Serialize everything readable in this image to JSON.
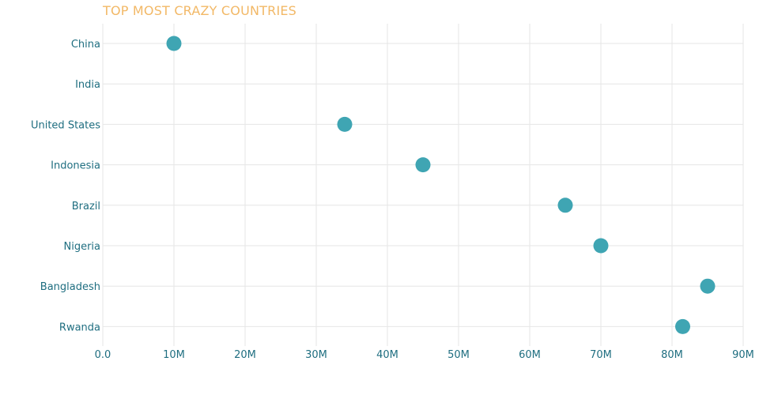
{
  "chart_data": {
    "type": "scatter",
    "title": "TOP MOST CRAZY COUNTRIES",
    "xlabel": "",
    "ylabel": "",
    "categories": [
      "China",
      "India",
      "United States",
      "Indonesia",
      "Brazil",
      "Nigeria",
      "Bangladesh",
      "Rwanda"
    ],
    "values": [
      10000000,
      null,
      34000000,
      45000000,
      65000000,
      70000000,
      85000000,
      81500000
    ],
    "xlim": [
      0,
      90000000
    ],
    "x_ticks": [
      0,
      10000000,
      20000000,
      30000000,
      40000000,
      50000000,
      60000000,
      70000000,
      80000000,
      90000000
    ],
    "x_tick_labels": [
      "0.0",
      "10M",
      "20M",
      "30M",
      "40M",
      "50M",
      "60M",
      "70M",
      "80M",
      "90M"
    ],
    "grid": true,
    "legend": "none",
    "colors": {
      "marker": "#3fa5b3",
      "title": "#f2b866",
      "tick_text": "#1f6e80",
      "grid": "#e6e6e6"
    }
  }
}
